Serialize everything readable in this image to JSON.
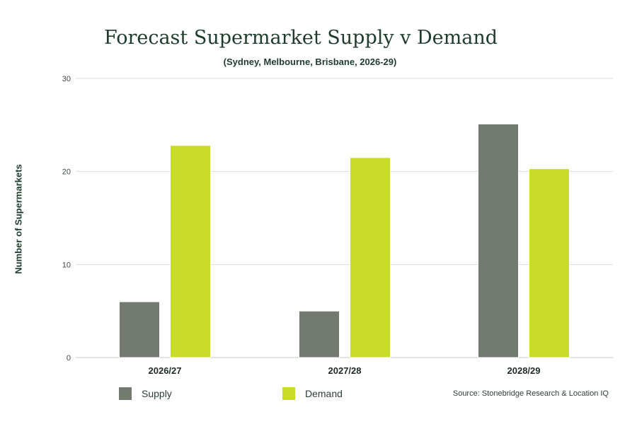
{
  "chart_data": {
    "type": "bar",
    "title": "Forecast Supermarket Supply v Demand",
    "subtitle": "(Sydney, Melbourne, Brisbane, 2026-29)",
    "xlabel": "",
    "ylabel": "Number of Supermarkets",
    "categories": [
      "2026/27",
      "2027/28",
      "2028/29"
    ],
    "series": [
      {
        "name": "Supply",
        "values": [
          6,
          5,
          25.1
        ],
        "color": "#737b71"
      },
      {
        "name": "Demand",
        "values": [
          22.8,
          21.5,
          20.3
        ],
        "color": "#cadc2a"
      }
    ],
    "ylim": [
      0,
      30
    ],
    "yticks": [
      0,
      10,
      20,
      30
    ],
    "grid": true,
    "legend_position": "bottom-left",
    "source": "Source: Stonebridge Research & Location IQ"
  }
}
